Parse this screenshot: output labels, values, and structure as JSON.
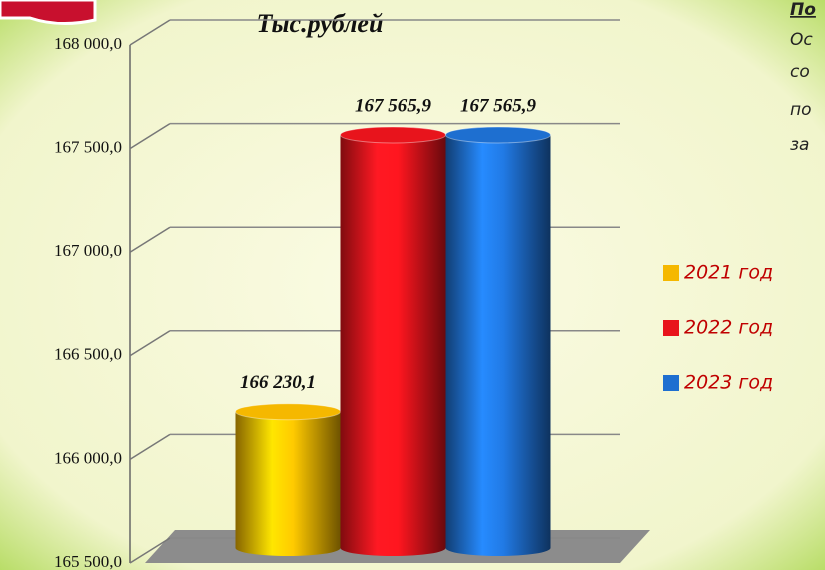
{
  "chart_data": {
    "type": "bar3d",
    "title": "Тыс.рублей",
    "categories": [
      null
    ],
    "series": [
      {
        "name": "2021 год",
        "color": "#f5b800",
        "values": [
          166230.1
        ],
        "value_labels": [
          "166 230,1"
        ]
      },
      {
        "name": "2022 год",
        "color": "#e8141c",
        "values": [
          167565.9
        ],
        "value_labels": [
          "167 565,9"
        ]
      },
      {
        "name": "2023 год",
        "color": "#1e6fd0",
        "values": [
          167565.9
        ],
        "value_labels": [
          "167 565,9"
        ]
      }
    ],
    "ylim": [
      165500,
      168000
    ],
    "yticks": [
      {
        "value": 165500,
        "label": "165 500,0"
      },
      {
        "value": 166000,
        "label": "166 000,0"
      },
      {
        "value": 166500,
        "label": "166 500,0"
      },
      {
        "value": 167000,
        "label": "167 000,0"
      },
      {
        "value": 167500,
        "label": "167 500,0"
      },
      {
        "value": 168000,
        "label": "168 000,0"
      }
    ],
    "grid": true,
    "legend": "right",
    "side_text": [
      "По",
      "Ос",
      "со",
      "по",
      "за"
    ]
  }
}
